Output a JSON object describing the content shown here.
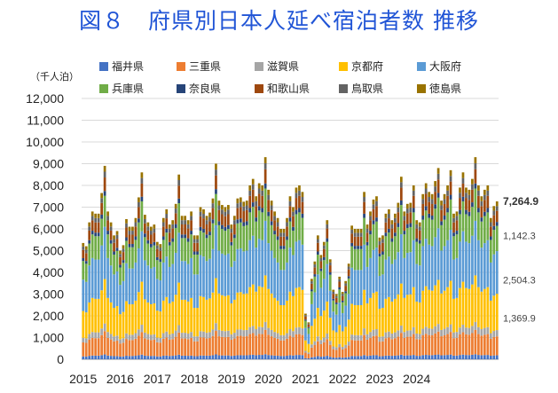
{
  "title": "図８　府県別日本人延べ宿泊者数 推移",
  "chart_data": {
    "type": "bar",
    "stacked": true,
    "unit_label": "（千人泊）",
    "ylim": [
      0,
      12000
    ],
    "y_ticks": [
      "0",
      "1,000",
      "2,000",
      "3,000",
      "4,000",
      "5,000",
      "6,000",
      "7,000",
      "8,000",
      "9,000",
      "10,000",
      "11,000",
      "12,000"
    ],
    "x_labels": [
      "2015",
      "2016",
      "2017",
      "2018",
      "2019",
      "2020",
      "2021",
      "2022",
      "2023",
      "2024"
    ],
    "x_label_months": [
      0,
      12,
      24,
      36,
      48,
      60,
      72,
      84,
      96,
      108
    ],
    "grid": true,
    "legend_position": "top",
    "series": [
      {
        "name": "福井県",
        "color": "#4472c4"
      },
      {
        "name": "三重県",
        "color": "#ed7d31"
      },
      {
        "name": "滋賀県",
        "color": "#a5a5a5"
      },
      {
        "name": "京都府",
        "color": "#ffc000"
      },
      {
        "name": "大阪府",
        "color": "#5b9bd5"
      },
      {
        "name": "兵庫県",
        "color": "#70ad47"
      },
      {
        "name": "奈良県",
        "color": "#264478"
      },
      {
        "name": "和歌山県",
        "color": "#9e480e"
      },
      {
        "name": "鳥取県",
        "color": "#636363"
      },
      {
        "name": "徳島県",
        "color": "#997300"
      }
    ],
    "shares": [
      0.025,
      0.12,
      0.04,
      0.23,
      0.27,
      0.16,
      0.025,
      0.07,
      0.03,
      0.03
    ],
    "totals": [
      5350,
      5200,
      6300,
      6800,
      6700,
      6700,
      7650,
      8900,
      6800,
      6300,
      5700,
      5900,
      5000,
      5250,
      6450,
      6100,
      6100,
      6500,
      7450,
      8600,
      6650,
      6300,
      6100,
      6200,
      5400,
      5300,
      6500,
      6900,
      6200,
      6400,
      7150,
      8500,
      6600,
      6600,
      6400,
      6800,
      5700,
      5700,
      7000,
      6900,
      6600,
      6750,
      7400,
      9000,
      7300,
      7100,
      7000,
      7100,
      6200,
      6600,
      7400,
      7450,
      7250,
      7300,
      8000,
      8300,
      7500,
      8100,
      8000,
      9300,
      7800,
      7300,
      6800,
      6500,
      6000,
      6000,
      6500,
      7500,
      7000,
      7900,
      8000,
      7700,
      2100,
      1700,
      3700,
      4500,
      5700,
      4800,
      5400,
      6400,
      4600,
      3200,
      3000,
      3800,
      3100,
      3600,
      4400,
      6150,
      6000,
      6000,
      6000,
      7700,
      6200,
      6800,
      7350,
      7500,
      5600,
      5700,
      6700,
      6900,
      6400,
      6700,
      7200,
      8400,
      6800,
      7150,
      7200,
      8000,
      6400,
      6300,
      7600,
      8100,
      7700,
      7600,
      8200,
      8800,
      7300,
      7600,
      8000,
      8700,
      6700,
      6800,
      7900,
      8600,
      7900,
      7800,
      8300,
      9300,
      8000,
      7500,
      7800,
      8000,
      6500,
      7050,
      7264.9
    ],
    "annotations": [
      {
        "label": "7,264.9",
        "value": 7264.9,
        "bold": true
      },
      {
        "label": "1,142.3",
        "value": 5700
      },
      {
        "label": "2,504.3",
        "value": 3650
      },
      {
        "label": "1,369.9",
        "value": 1900
      }
    ]
  }
}
